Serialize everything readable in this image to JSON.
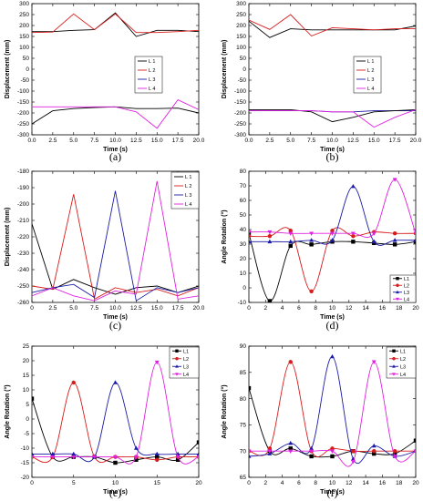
{
  "colors": {
    "L1": "#000000",
    "L2": "#d81b1b",
    "L3": "#1a1aa6",
    "L4": "#e020e0"
  },
  "chart_data": [
    {
      "id": "a",
      "panel_label": "(a)",
      "type": "line",
      "xlabel": "Time (s)",
      "ylabel": "Displacement (mm)",
      "xlim": [
        0,
        20
      ],
      "ylim": [
        -300,
        300
      ],
      "xticks": [
        "0.0",
        "2.5",
        "5.0",
        "7.5",
        "10.0",
        "12.5",
        "15.0",
        "17.5",
        "20.0"
      ],
      "yticks": [
        "-300",
        "-250",
        "-200",
        "-150",
        "-100",
        "-50",
        "0",
        "50",
        "100",
        "150",
        "200",
        "250",
        "300"
      ],
      "legend": "mid-right",
      "series": [
        {
          "name": "L 1",
          "color": "#000000",
          "marker": "none",
          "group": "upper",
          "x": [
            0,
            2.5,
            5,
            7.5,
            10,
            12.5,
            15,
            17.5,
            20
          ],
          "y": [
            172,
            172,
            178,
            181,
            258,
            150,
            178,
            178,
            172
          ]
        },
        {
          "name": "L 2",
          "color": "#d81b1b",
          "marker": "none",
          "group": "upper",
          "x": [
            0,
            2.5,
            5,
            7.5,
            10,
            12.5,
            15,
            17.5,
            20
          ],
          "y": [
            168,
            170,
            253,
            181,
            253,
            168,
            168,
            172,
            178
          ]
        },
        {
          "name": "L 1",
          "color": "#000000",
          "marker": "none",
          "group": "lower",
          "x": [
            0,
            2.5,
            5,
            7.5,
            10,
            12.5,
            15,
            17.5,
            20
          ],
          "y": [
            -250,
            -190,
            -180,
            -175,
            -172,
            -180,
            -180,
            -178,
            -200
          ]
        },
        {
          "name": "L 4",
          "color": "#e020e0",
          "marker": "none",
          "group": "lower",
          "x": [
            0,
            2.5,
            5,
            7.5,
            10,
            12.5,
            15,
            17.5,
            20
          ],
          "y": [
            -172,
            -172,
            -172,
            -172,
            -172,
            -195,
            -270,
            -140,
            -185
          ]
        }
      ],
      "legend_entries": [
        {
          "name": "L 1",
          "color": "#000000"
        },
        {
          "name": "L 2",
          "color": "#d81b1b"
        },
        {
          "name": "L 3",
          "color": "#1a1aa6"
        },
        {
          "name": "L 4",
          "color": "#e020e0"
        }
      ]
    },
    {
      "id": "b",
      "panel_label": "(b)",
      "type": "line",
      "xlabel": "Time (s)",
      "ylabel": "Displacement (mm)",
      "xlim": [
        0,
        20
      ],
      "ylim": [
        -300,
        300
      ],
      "xticks": [
        "0.0",
        "2.5",
        "5.0",
        "7.5",
        "10.0",
        "12.5",
        "15.0",
        "17.5",
        "20.0"
      ],
      "yticks": [
        "-300",
        "-250",
        "-200",
        "-150",
        "-100",
        "-50",
        "0",
        "50",
        "100",
        "150",
        "200",
        "250",
        "300"
      ],
      "legend": "mid-right",
      "series": [
        {
          "name": "L 1",
          "color": "#000000",
          "marker": "none",
          "x": [
            0,
            2.5,
            5,
            7.5,
            10,
            12.5,
            15,
            17.5,
            20
          ],
          "y": [
            220,
            145,
            185,
            180,
            180,
            180,
            180,
            180,
            198
          ]
        },
        {
          "name": "L 2",
          "color": "#d81b1b",
          "marker": "none",
          "x": [
            0,
            2.5,
            5,
            7.5,
            10,
            12.5,
            15,
            17.5,
            20
          ],
          "y": [
            225,
            182,
            250,
            152,
            190,
            185,
            180,
            185,
            185
          ]
        },
        {
          "name": "L 3",
          "color": "#1a1aa6",
          "marker": "none",
          "x": [
            0,
            2.5,
            5,
            7.5,
            10,
            12.5,
            15,
            17.5,
            20
          ],
          "y": [
            -190,
            -190,
            -190,
            -190,
            -195,
            -195,
            -190,
            -190,
            -190
          ]
        },
        {
          "name": "L 1",
          "color": "#000000",
          "marker": "none",
          "x": [
            0,
            2.5,
            5,
            7.5,
            10,
            12.5,
            15,
            17.5,
            20
          ],
          "y": [
            -185,
            -185,
            -185,
            -195,
            -240,
            -220,
            -195,
            -190,
            -185
          ]
        },
        {
          "name": "L 4",
          "color": "#e020e0",
          "marker": "none",
          "x": [
            0,
            2.5,
            5,
            7.5,
            10,
            12.5,
            15,
            17.5,
            20
          ],
          "y": [
            -190,
            -190,
            -190,
            -190,
            -195,
            -195,
            -265,
            -220,
            -185
          ]
        }
      ],
      "legend_entries": [
        {
          "name": "L 1",
          "color": "#000000"
        },
        {
          "name": "L 2",
          "color": "#d81b1b"
        },
        {
          "name": "L 3",
          "color": "#1a1aa6"
        },
        {
          "name": "L 4",
          "color": "#e020e0"
        }
      ]
    },
    {
      "id": "c",
      "panel_label": "(c)",
      "type": "line",
      "xlabel": "Time (s)",
      "ylabel": "Displacement (mm)",
      "xlim": [
        0,
        20
      ],
      "ylim": [
        -260,
        -180
      ],
      "xticks": [
        "0",
        "2.5",
        "5.0",
        "7.5",
        "10.0",
        "12.5",
        "15.0",
        "17.5",
        "20.0"
      ],
      "yticks": [
        "-260",
        "-250",
        "-240",
        "-230",
        "-220",
        "-210",
        "-200",
        "-190",
        "-180"
      ],
      "legend": "top-right",
      "series": [
        {
          "name": "L 1",
          "color": "#000000",
          "marker": "none",
          "x": [
            0,
            2.5,
            5,
            7.5,
            10,
            12.5,
            15,
            17.5,
            20
          ],
          "y": [
            -212,
            -252,
            -246,
            -251,
            -255,
            -251,
            -250,
            -254,
            -250
          ]
        },
        {
          "name": "L 2",
          "color": "#d81b1b",
          "marker": "none",
          "x": [
            0,
            2.5,
            5,
            7.5,
            10,
            12.5,
            15,
            17.5,
            20
          ],
          "y": [
            -250,
            -252,
            -194,
            -258,
            -251,
            -254,
            -252,
            -256,
            -251
          ]
        },
        {
          "name": "L 3",
          "color": "#1a1aa6",
          "marker": "none",
          "x": [
            0,
            2.5,
            5,
            7.5,
            10,
            12.5,
            15,
            17.5,
            20
          ],
          "y": [
            -254,
            -251,
            -249,
            -257,
            -192,
            -259,
            -251,
            -254,
            -251
          ]
        },
        {
          "name": "L 4",
          "color": "#e020e0",
          "marker": "none",
          "x": [
            0,
            2.5,
            5,
            7.5,
            10,
            12.5,
            15,
            17.5,
            20
          ],
          "y": [
            -256,
            -251,
            -256,
            -259,
            -253,
            -255,
            -186,
            -258,
            -256
          ]
        }
      ],
      "legend_entries": [
        {
          "name": "L 1",
          "color": "#000000"
        },
        {
          "name": "L 2",
          "color": "#d81b1b"
        },
        {
          "name": "L 3",
          "color": "#1a1aa6"
        },
        {
          "name": "L 4",
          "color": "#e020e0"
        }
      ]
    },
    {
      "id": "d",
      "panel_label": "(d)",
      "type": "line",
      "xlabel": "Time (s)",
      "ylabel": "Angle Rotation (°)",
      "xlim": [
        0,
        20
      ],
      "ylim": [
        -10,
        85
      ],
      "xticks": [
        "0",
        "2",
        "4",
        "6",
        "8",
        "10",
        "12",
        "14",
        "16",
        "18",
        "20"
      ],
      "yticks": [
        "-10",
        "0",
        "10",
        "20",
        "30",
        "40",
        "50",
        "60",
        "70",
        "80"
      ],
      "legend": "bottom-right",
      "series": [
        {
          "name": "L1",
          "color": "#000000",
          "marker": "square",
          "x": [
            0,
            2.5,
            5,
            7.5,
            10,
            12.5,
            15,
            17.5,
            20
          ],
          "y": [
            40,
            -9,
            31,
            32,
            34,
            34,
            33,
            32,
            34
          ]
        },
        {
          "name": "L2",
          "color": "#d81b1b",
          "marker": "circle",
          "x": [
            0,
            2.5,
            5,
            7.5,
            10,
            12.5,
            15,
            17.5,
            20
          ],
          "y": [
            38,
            38,
            42,
            -2,
            42,
            38,
            41,
            40,
            40
          ]
        },
        {
          "name": "L3",
          "color": "#1a1aa6",
          "marker": "triangle-up",
          "x": [
            0,
            2.5,
            5,
            7.5,
            10,
            12.5,
            15,
            17.5,
            20
          ],
          "y": [
            34,
            34,
            34,
            35,
            35,
            74,
            34,
            35,
            35
          ]
        },
        {
          "name": "L4",
          "color": "#e020e0",
          "marker": "triangle-down",
          "x": [
            0,
            2.5,
            5,
            7.5,
            10,
            12.5,
            15,
            17.5,
            20
          ],
          "y": [
            41,
            41,
            40,
            40,
            40,
            40,
            40,
            79,
            40
          ]
        }
      ],
      "legend_entries": [
        {
          "name": "L1",
          "color": "#000000",
          "marker": "square"
        },
        {
          "name": "L2",
          "color": "#d81b1b",
          "marker": "circle"
        },
        {
          "name": "L3",
          "color": "#1a1aa6",
          "marker": "triangle-up"
        },
        {
          "name": "L4",
          "color": "#e020e0",
          "marker": "triangle-down"
        }
      ]
    },
    {
      "id": "e",
      "panel_label": "(e)",
      "type": "line",
      "xlabel": "Time (s)",
      "ylabel": "Angle Rotation (°)",
      "xlim": [
        0,
        20
      ],
      "ylim": [
        -20,
        25
      ],
      "xticks": [
        "0",
        "5",
        "10",
        "15",
        "20"
      ],
      "yticks": [
        "-20",
        "-15",
        "-10",
        "-5",
        "0",
        "5",
        "10",
        "15",
        "20",
        "25"
      ],
      "legend": "top-right",
      "series": [
        {
          "name": "L1",
          "color": "#000000",
          "marker": "square",
          "x": [
            0,
            2.5,
            5,
            7.5,
            10,
            12.5,
            15,
            17.5,
            20
          ],
          "y": [
            7,
            -13,
            -13,
            -13,
            -15,
            -14,
            -13,
            -14,
            -8
          ]
        },
        {
          "name": "L2",
          "color": "#d81b1b",
          "marker": "circle",
          "x": [
            0,
            2.5,
            5,
            7.5,
            10,
            12.5,
            15,
            17.5,
            20
          ],
          "y": [
            -13,
            -13,
            12.5,
            -13,
            -13,
            -13,
            -14,
            -13,
            -13
          ]
        },
        {
          "name": "L3",
          "color": "#1a1aa6",
          "marker": "triangle-up",
          "x": [
            0,
            2.5,
            5,
            7.5,
            10,
            12.5,
            15,
            17.5,
            20
          ],
          "y": [
            -12,
            -12,
            -12,
            -13,
            12.5,
            -10,
            -12,
            -12,
            -12
          ]
        },
        {
          "name": "L4",
          "color": "#e020e0",
          "marker": "triangle-down",
          "x": [
            0,
            2.5,
            5,
            7.5,
            10,
            12.5,
            15,
            17.5,
            20
          ],
          "y": [
            -13,
            -13,
            -13,
            -13,
            -13,
            -13,
            19.5,
            -13,
            -13
          ]
        }
      ],
      "legend_entries": [
        {
          "name": "L1",
          "color": "#000000",
          "marker": "square"
        },
        {
          "name": "L2",
          "color": "#d81b1b",
          "marker": "circle"
        },
        {
          "name": "L3",
          "color": "#1a1aa6",
          "marker": "triangle-up"
        },
        {
          "name": "L4",
          "color": "#e020e0",
          "marker": "triangle-down"
        }
      ]
    },
    {
      "id": "f",
      "panel_label": "(f)",
      "type": "line",
      "xlabel": "Time (s)",
      "ylabel": "Angle Rotation (°)",
      "xlim": [
        0,
        20
      ],
      "ylim": [
        65,
        90
      ],
      "xticks": [
        "0",
        "2",
        "4",
        "6",
        "8",
        "10",
        "12",
        "14",
        "16",
        "18",
        "20"
      ],
      "yticks": [
        "65",
        "70",
        "75",
        "80",
        "85",
        "90"
      ],
      "legend": "top-right",
      "series": [
        {
          "name": "L1",
          "color": "#000000",
          "marker": "square",
          "x": [
            0,
            2.5,
            5,
            7.5,
            10,
            12.5,
            15,
            17.5,
            20
          ],
          "y": [
            82,
            70,
            70.5,
            69,
            69,
            70,
            69.5,
            69.5,
            72
          ]
        },
        {
          "name": "L2",
          "color": "#d81b1b",
          "marker": "circle",
          "x": [
            0,
            2.5,
            5,
            7.5,
            10,
            12.5,
            15,
            17.5,
            20
          ],
          "y": [
            70,
            70.5,
            87,
            70,
            70.5,
            70,
            70,
            70,
            70
          ]
        },
        {
          "name": "L3",
          "color": "#1a1aa6",
          "marker": "triangle-up",
          "x": [
            0,
            2.5,
            5,
            7.5,
            10,
            12.5,
            15,
            17.5,
            20
          ],
          "y": [
            69,
            69.5,
            71.5,
            70.5,
            88,
            68.5,
            71,
            69,
            70
          ]
        },
        {
          "name": "L4",
          "color": "#e020e0",
          "marker": "triangle-down",
          "x": [
            0,
            2.5,
            5,
            7.5,
            10,
            12.5,
            15,
            17.5,
            20
          ],
          "y": [
            70,
            70,
            70,
            70,
            70,
            68,
            87,
            69,
            70
          ]
        }
      ],
      "legend_entries": [
        {
          "name": "L1",
          "color": "#000000",
          "marker": "square"
        },
        {
          "name": "L2",
          "color": "#d81b1b",
          "marker": "circle"
        },
        {
          "name": "L3",
          "color": "#1a1aa6",
          "marker": "triangle-up"
        },
        {
          "name": "L4",
          "color": "#e020e0",
          "marker": "triangle-down"
        }
      ]
    }
  ]
}
